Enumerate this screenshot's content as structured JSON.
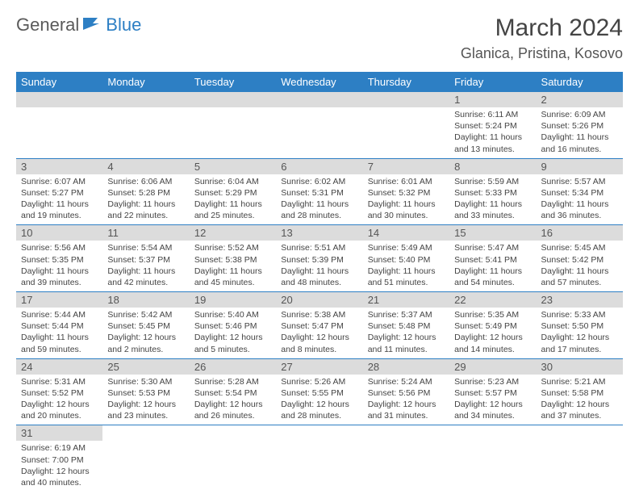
{
  "logo": {
    "text1": "General",
    "text2": "Blue"
  },
  "title": "March 2024",
  "location": "Glanica, Pristina, Kosovo",
  "colors": {
    "header_bg": "#2d7fc4",
    "header_fg": "#ffffff",
    "daynum_bg": "#dcdcdc",
    "row_border": "#2d7fc4",
    "logo_gray": "#5a5a5a",
    "logo_blue": "#2d7fc4"
  },
  "weekdays": [
    "Sunday",
    "Monday",
    "Tuesday",
    "Wednesday",
    "Thursday",
    "Friday",
    "Saturday"
  ],
  "cells": [
    {
      "empty": true
    },
    {
      "empty": true
    },
    {
      "empty": true
    },
    {
      "empty": true
    },
    {
      "empty": true
    },
    {
      "n": "1",
      "sr": "6:11 AM",
      "ss": "5:24 PM",
      "dl": "11 hours and 13 minutes."
    },
    {
      "n": "2",
      "sr": "6:09 AM",
      "ss": "5:26 PM",
      "dl": "11 hours and 16 minutes."
    },
    {
      "n": "3",
      "sr": "6:07 AM",
      "ss": "5:27 PM",
      "dl": "11 hours and 19 minutes."
    },
    {
      "n": "4",
      "sr": "6:06 AM",
      "ss": "5:28 PM",
      "dl": "11 hours and 22 minutes."
    },
    {
      "n": "5",
      "sr": "6:04 AM",
      "ss": "5:29 PM",
      "dl": "11 hours and 25 minutes."
    },
    {
      "n": "6",
      "sr": "6:02 AM",
      "ss": "5:31 PM",
      "dl": "11 hours and 28 minutes."
    },
    {
      "n": "7",
      "sr": "6:01 AM",
      "ss": "5:32 PM",
      "dl": "11 hours and 30 minutes."
    },
    {
      "n": "8",
      "sr": "5:59 AM",
      "ss": "5:33 PM",
      "dl": "11 hours and 33 minutes."
    },
    {
      "n": "9",
      "sr": "5:57 AM",
      "ss": "5:34 PM",
      "dl": "11 hours and 36 minutes."
    },
    {
      "n": "10",
      "sr": "5:56 AM",
      "ss": "5:35 PM",
      "dl": "11 hours and 39 minutes."
    },
    {
      "n": "11",
      "sr": "5:54 AM",
      "ss": "5:37 PM",
      "dl": "11 hours and 42 minutes."
    },
    {
      "n": "12",
      "sr": "5:52 AM",
      "ss": "5:38 PM",
      "dl": "11 hours and 45 minutes."
    },
    {
      "n": "13",
      "sr": "5:51 AM",
      "ss": "5:39 PM",
      "dl": "11 hours and 48 minutes."
    },
    {
      "n": "14",
      "sr": "5:49 AM",
      "ss": "5:40 PM",
      "dl": "11 hours and 51 minutes."
    },
    {
      "n": "15",
      "sr": "5:47 AM",
      "ss": "5:41 PM",
      "dl": "11 hours and 54 minutes."
    },
    {
      "n": "16",
      "sr": "5:45 AM",
      "ss": "5:42 PM",
      "dl": "11 hours and 57 minutes."
    },
    {
      "n": "17",
      "sr": "5:44 AM",
      "ss": "5:44 PM",
      "dl": "11 hours and 59 minutes."
    },
    {
      "n": "18",
      "sr": "5:42 AM",
      "ss": "5:45 PM",
      "dl": "12 hours and 2 minutes."
    },
    {
      "n": "19",
      "sr": "5:40 AM",
      "ss": "5:46 PM",
      "dl": "12 hours and 5 minutes."
    },
    {
      "n": "20",
      "sr": "5:38 AM",
      "ss": "5:47 PM",
      "dl": "12 hours and 8 minutes."
    },
    {
      "n": "21",
      "sr": "5:37 AM",
      "ss": "5:48 PM",
      "dl": "12 hours and 11 minutes."
    },
    {
      "n": "22",
      "sr": "5:35 AM",
      "ss": "5:49 PM",
      "dl": "12 hours and 14 minutes."
    },
    {
      "n": "23",
      "sr": "5:33 AM",
      "ss": "5:50 PM",
      "dl": "12 hours and 17 minutes."
    },
    {
      "n": "24",
      "sr": "5:31 AM",
      "ss": "5:52 PM",
      "dl": "12 hours and 20 minutes."
    },
    {
      "n": "25",
      "sr": "5:30 AM",
      "ss": "5:53 PM",
      "dl": "12 hours and 23 minutes."
    },
    {
      "n": "26",
      "sr": "5:28 AM",
      "ss": "5:54 PM",
      "dl": "12 hours and 26 minutes."
    },
    {
      "n": "27",
      "sr": "5:26 AM",
      "ss": "5:55 PM",
      "dl": "12 hours and 28 minutes."
    },
    {
      "n": "28",
      "sr": "5:24 AM",
      "ss": "5:56 PM",
      "dl": "12 hours and 31 minutes."
    },
    {
      "n": "29",
      "sr": "5:23 AM",
      "ss": "5:57 PM",
      "dl": "12 hours and 34 minutes."
    },
    {
      "n": "30",
      "sr": "5:21 AM",
      "ss": "5:58 PM",
      "dl": "12 hours and 37 minutes."
    },
    {
      "n": "31",
      "sr": "6:19 AM",
      "ss": "7:00 PM",
      "dl": "12 hours and 40 minutes."
    },
    {
      "empty": true,
      "blank": true
    },
    {
      "empty": true,
      "blank": true
    },
    {
      "empty": true,
      "blank": true
    },
    {
      "empty": true,
      "blank": true
    },
    {
      "empty": true,
      "blank": true
    },
    {
      "empty": true,
      "blank": true
    }
  ],
  "labels": {
    "sunrise": "Sunrise:",
    "sunset": "Sunset:",
    "daylight": "Daylight:"
  }
}
